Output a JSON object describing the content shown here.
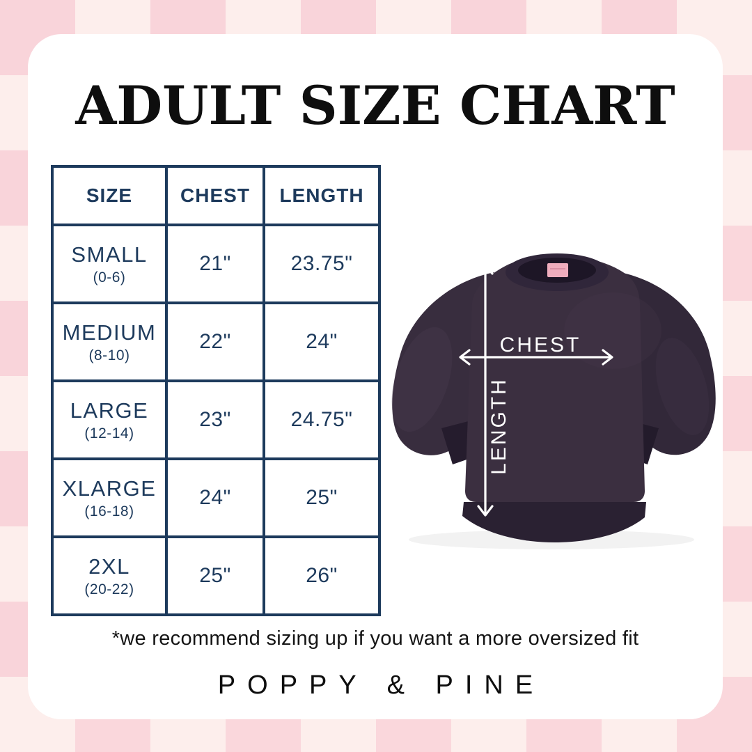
{
  "page": {
    "title": "ADULT SIZE CHART",
    "footnote": "*we recommend sizing up if you want a more oversized fit",
    "brand": "POPPY & PINE"
  },
  "size_table": {
    "headers": [
      "SIZE",
      "CHEST",
      "LENGTH"
    ],
    "rows": [
      {
        "size": "SMALL",
        "range": "(0-6)",
        "chest": "21\"",
        "length": "23.75\""
      },
      {
        "size": "MEDIUM",
        "range": "(8-10)",
        "chest": "22\"",
        "length": "24\""
      },
      {
        "size": "LARGE",
        "range": "(12-14)",
        "chest": "23\"",
        "length": "24.75\""
      },
      {
        "size": "XLARGE",
        "range": "(16-18)",
        "chest": "24\"",
        "length": "25\""
      },
      {
        "size": "2XL",
        "range": "(20-22)",
        "chest": "25\"",
        "length": "26\""
      }
    ]
  },
  "diagram": {
    "chest_label": "CHEST",
    "length_label": "LENGTH"
  },
  "chart_data": {
    "type": "table",
    "title": "ADULT SIZE CHART",
    "columns": [
      "SIZE",
      "CHEST",
      "LENGTH"
    ],
    "rows": [
      [
        "SMALL (0-6)",
        "21\"",
        "23.75\""
      ],
      [
        "MEDIUM (8-10)",
        "22\"",
        "24\""
      ],
      [
        "LARGE (12-14)",
        "23\"",
        "24.75\""
      ],
      [
        "XLARGE (16-18)",
        "24\"",
        "25\""
      ],
      [
        "2XL (20-22)",
        "25\"",
        "26\""
      ]
    ],
    "units": "inches",
    "note": "*we recommend sizing up if you want a more oversized fit"
  },
  "colors": {
    "table_navy": "#1d3a5c",
    "checker_dark_pink": "#f9d4da",
    "checker_light_pink": "#fdeeec",
    "card_white": "#ffffff",
    "sweatshirt_plum": "#3b2f40",
    "cuff_dark": "#251c2d",
    "tag_pink": "#efadbd",
    "title_black": "#0e0e0e",
    "arrow_white": "#ffffff"
  }
}
